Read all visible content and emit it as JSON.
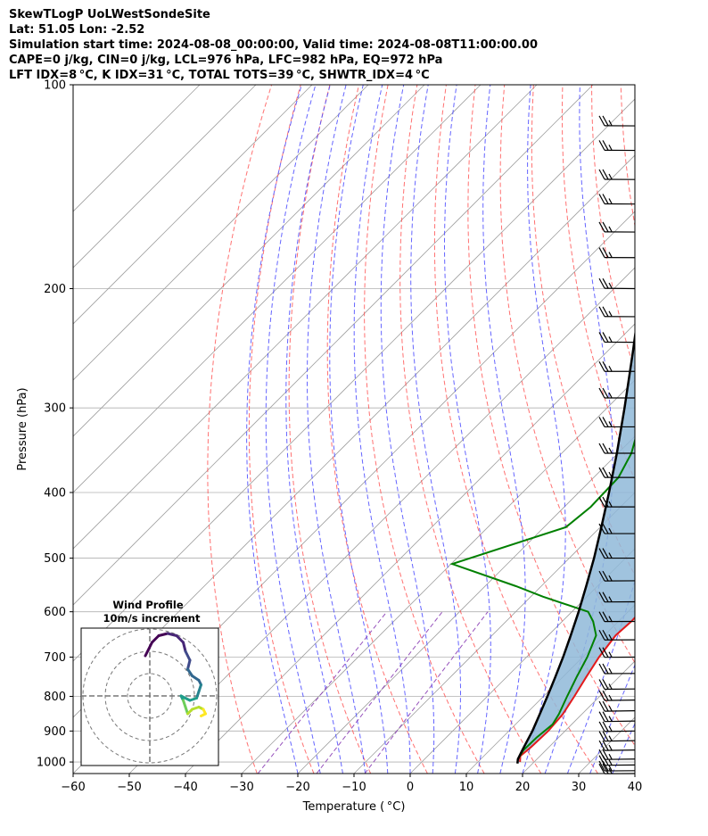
{
  "header": {
    "line1": "SkewTLogP UoLWestSondeSite",
    "line2": "Lat: 51.05   Lon: -2.52",
    "line3": "Simulation start time: 2024-08-08_00:00:00, Valid time: 2024-08-08T11:00:00.00",
    "line4": "CAPE=0 j/kg, CIN=0 j/kg, LCL=976 hPa, LFC=982 hPa, EQ=972 hPa",
    "line5": "LFT IDX=8 °C, K IDX=31 °C, TOTAL TOTS=39 °C, SHWTR_IDX=4 °C"
  },
  "axes": {
    "xlabel": "Temperature ( °C)",
    "ylabel": "Pressure (hPa)"
  },
  "hodograph": {
    "title": "Wind Profile",
    "subtitle": "10m/s increment"
  },
  "colors": {
    "temperature": "#e31a1c",
    "dewpoint": "#008000",
    "parcel": "#000000",
    "cape_fill": "#8fb8d8",
    "dry_adiabat": "#ff4d4d",
    "moist_adiabat": "#4a4aff",
    "mixing_ratio": "#8b3fb5",
    "isotherm": "#a0a0a0"
  },
  "chart_data": {
    "type": "line",
    "xlim": [
      -60,
      40
    ],
    "ylim": [
      1040,
      100
    ],
    "log_y": true,
    "skew": true,
    "x_ticks": [
      -60,
      -50,
      -40,
      -30,
      -20,
      -10,
      0,
      10,
      20,
      30,
      40
    ],
    "x_tick_labels": [
      "−60",
      "−50",
      "−40",
      "−30",
      "−20",
      "−10",
      "0",
      "10",
      "20",
      "30",
      "40"
    ],
    "y_ticks": [
      1000,
      900,
      800,
      700,
      600,
      500,
      400,
      300,
      200,
      100
    ],
    "y_tick_labels": [
      "1000",
      "900",
      "800",
      "700",
      "600",
      "500",
      "400",
      "300",
      "200",
      "100"
    ],
    "grid": true,
    "series": [
      {
        "key": "temperature",
        "points": [
          [
            1000,
            17.5
          ],
          [
            980,
            16.5
          ],
          [
            950,
            16.8
          ],
          [
            900,
            17.0
          ],
          [
            850,
            16.6
          ],
          [
            800,
            15.5
          ],
          [
            750,
            14.2
          ],
          [
            700,
            12.9
          ],
          [
            650,
            12.0
          ],
          [
            620,
            12.3
          ],
          [
            600,
            12.2
          ],
          [
            560,
            11.8
          ],
          [
            530,
            10.9
          ],
          [
            500,
            9.4
          ],
          [
            450,
            6.3
          ],
          [
            420,
            3.9
          ],
          [
            400,
            2.0
          ],
          [
            350,
            -3.3
          ],
          [
            320,
            -6.8
          ],
          [
            300,
            -9.0
          ],
          [
            280,
            -11.9
          ],
          [
            260,
            -14.6
          ],
          [
            240,
            -17.9
          ],
          [
            220,
            -21.6
          ],
          [
            210,
            -23.6
          ],
          [
            200,
            -25.7
          ],
          [
            190,
            -25.9
          ],
          [
            180,
            -25.9
          ],
          [
            170,
            -27.4
          ],
          [
            160,
            -29.5
          ],
          [
            150,
            -33.3
          ],
          [
            140,
            -36.8
          ],
          [
            130,
            -39.9
          ],
          [
            120,
            -42.6
          ],
          [
            110,
            -46.3
          ],
          [
            100,
            -49.5
          ]
        ]
      },
      {
        "key": "dewpoint",
        "points": [
          [
            990,
            16.6
          ],
          [
            960,
            16.0
          ],
          [
            920,
            16.1
          ],
          [
            880,
            16.6
          ],
          [
            850,
            15.9
          ],
          [
            800,
            14.2
          ],
          [
            750,
            12.5
          ],
          [
            700,
            10.8
          ],
          [
            650,
            8.5
          ],
          [
            620,
            5.5
          ],
          [
            600,
            2.9
          ],
          [
            570,
            -7.8
          ],
          [
            550,
            -14.5
          ],
          [
            510,
            -29.8
          ],
          [
            450,
            -16.1
          ],
          [
            420,
            -15.3
          ],
          [
            380,
            -15.6
          ],
          [
            350,
            -17.6
          ],
          [
            320,
            -21.0
          ],
          [
            300,
            -22.0
          ],
          [
            280,
            -26.9
          ],
          [
            260,
            -28.6
          ],
          [
            240,
            -30.6
          ],
          [
            220,
            -34.2
          ],
          [
            210,
            -35.6
          ],
          [
            200,
            -37.5
          ],
          [
            190,
            -37.8
          ],
          [
            180,
            -38.8
          ],
          [
            170,
            -41.0
          ],
          [
            160,
            -43.4
          ],
          [
            150,
            -47.3
          ],
          [
            140,
            -54.5
          ],
          [
            130,
            -60.3
          ],
          [
            120,
            -62.1
          ],
          [
            110,
            -66.4
          ],
          [
            100,
            -71.1
          ]
        ]
      },
      {
        "key": "parcel",
        "points": [
          [
            1005,
            17.3
          ],
          [
            990,
            16.6
          ],
          [
            960,
            15.8
          ],
          [
            930,
            15.0
          ],
          [
            900,
            14.2
          ],
          [
            850,
            12.5
          ],
          [
            800,
            10.7
          ],
          [
            750,
            8.7
          ],
          [
            700,
            6.5
          ],
          [
            650,
            4.0
          ],
          [
            600,
            1.2
          ],
          [
            550,
            -2.0
          ],
          [
            500,
            -5.6
          ],
          [
            450,
            -9.8
          ],
          [
            400,
            -14.6
          ],
          [
            350,
            -20.2
          ],
          [
            300,
            -26.9
          ],
          [
            250,
            -35.0
          ],
          [
            200,
            -45.1
          ],
          [
            150,
            -58.1
          ],
          [
            120,
            -68.3
          ],
          [
            100,
            -76.5
          ]
        ]
      }
    ],
    "wind_barbs": [
      {
        "p": 1040,
        "speed": 15,
        "dir": 80
      },
      {
        "p": 1030,
        "speed": 15,
        "dir": 75
      },
      {
        "p": 1010,
        "speed": 15,
        "dir": 70
      },
      {
        "p": 990,
        "speed": 15,
        "dir": 65
      },
      {
        "p": 960,
        "speed": 15,
        "dir": 60
      },
      {
        "p": 930,
        "speed": 15,
        "dir": 60
      },
      {
        "p": 900,
        "speed": 15,
        "dir": 60
      },
      {
        "p": 870,
        "speed": 15,
        "dir": 60
      },
      {
        "p": 840,
        "speed": 15,
        "dir": 60
      },
      {
        "p": 810,
        "speed": 15,
        "dir": 60
      },
      {
        "p": 780,
        "speed": 15,
        "dir": 70
      },
      {
        "p": 740,
        "speed": 15,
        "dir": 80
      },
      {
        "p": 700,
        "speed": 15,
        "dir": 80
      },
      {
        "p": 660,
        "speed": 15,
        "dir": 80
      },
      {
        "p": 620,
        "speed": 15,
        "dir": 80
      },
      {
        "p": 580,
        "speed": 15,
        "dir": 80
      },
      {
        "p": 540,
        "speed": 15,
        "dir": 80
      },
      {
        "p": 500,
        "speed": 15,
        "dir": 90
      },
      {
        "p": 460,
        "speed": 15,
        "dir": 90
      },
      {
        "p": 420,
        "speed": 15,
        "dir": 90
      },
      {
        "p": 380,
        "speed": 15,
        "dir": 90
      },
      {
        "p": 350,
        "speed": 15,
        "dir": 90
      },
      {
        "p": 320,
        "speed": 15,
        "dir": 90
      },
      {
        "p": 290,
        "speed": 15,
        "dir": 90
      },
      {
        "p": 265,
        "speed": 15,
        "dir": 90
      },
      {
        "p": 240,
        "speed": 15,
        "dir": 100
      },
      {
        "p": 220,
        "speed": 15,
        "dir": 100
      },
      {
        "p": 200,
        "speed": 15,
        "dir": 110
      },
      {
        "p": 180,
        "speed": 15,
        "dir": 100
      },
      {
        "p": 165,
        "speed": 15,
        "dir": 100
      },
      {
        "p": 150,
        "speed": 15,
        "dir": 100
      },
      {
        "p": 138,
        "speed": 15,
        "dir": 100
      },
      {
        "p": 125,
        "speed": 15,
        "dir": 100
      },
      {
        "p": 115,
        "speed": 15,
        "dir": 100
      }
    ],
    "hodograph_trace": [
      [
        -0.2,
        1.8
      ],
      [
        0.1,
        2.4
      ],
      [
        0.4,
        2.7
      ],
      [
        0.8,
        2.8
      ],
      [
        1.2,
        2.7
      ],
      [
        1.5,
        2.4
      ],
      [
        1.6,
        2.0
      ],
      [
        1.8,
        1.6
      ],
      [
        1.7,
        1.2
      ],
      [
        1.9,
        0.9
      ],
      [
        2.2,
        0.7
      ],
      [
        2.3,
        0.5
      ],
      [
        2.2,
        0.2
      ],
      [
        2.1,
        -0.1
      ],
      [
        1.8,
        -0.2
      ],
      [
        1.4,
        0.0
      ],
      [
        1.5,
        -0.2
      ],
      [
        1.6,
        -0.5
      ],
      [
        1.7,
        -0.8
      ],
      [
        1.9,
        -0.6
      ],
      [
        2.2,
        -0.5
      ],
      [
        2.4,
        -0.6
      ],
      [
        2.5,
        -0.8
      ],
      [
        2.3,
        -0.9
      ]
    ]
  }
}
